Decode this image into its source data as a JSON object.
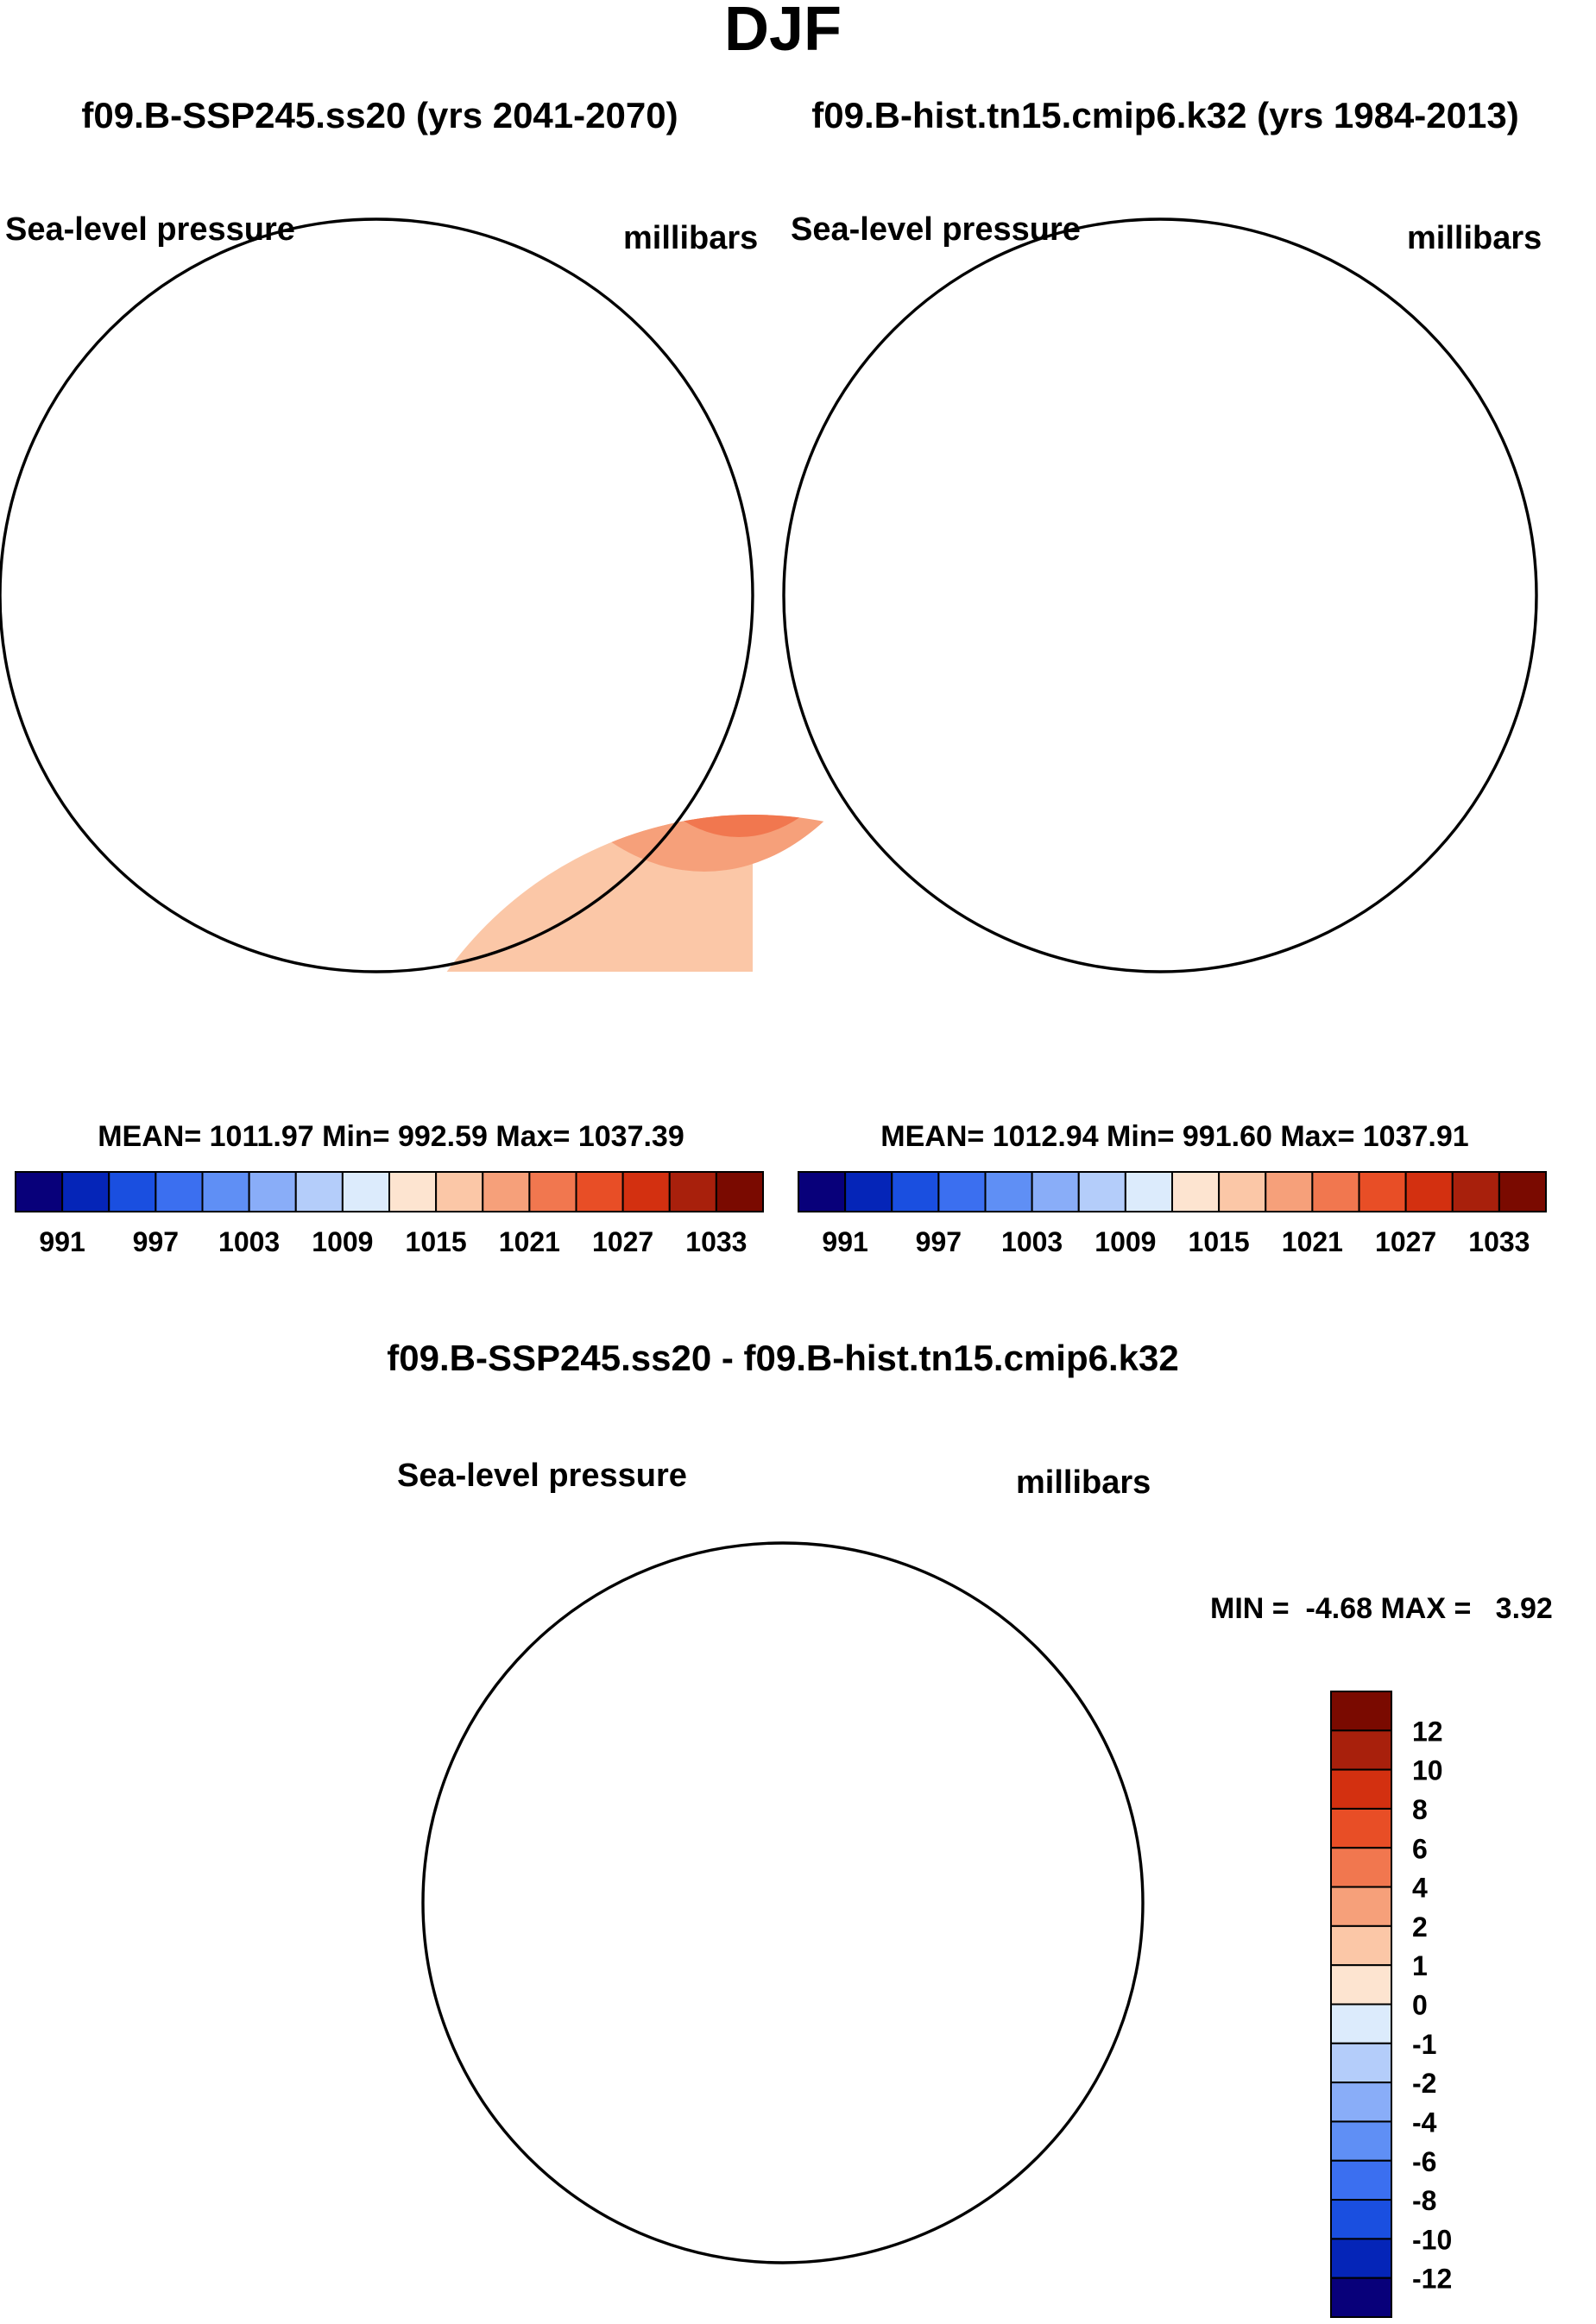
{
  "chart_data": [
    {
      "type": "heatmap",
      "projection": "north polar stereographic",
      "season_title": "DJF",
      "header": "f09.B-SSP245.ss20 (yrs 2041-2070)",
      "left_title": "Sea-level pressure",
      "right_title": "millibars",
      "stats_text": "MEAN= 1011.97  Min= 992.59  Max= 1037.39",
      "mean": 1011.97,
      "min": 992.59,
      "max": 1037.39,
      "levels": [
        991,
        994,
        997,
        1000,
        1003,
        1006,
        1009,
        1012,
        1015,
        1018,
        1021,
        1024,
        1027,
        1030,
        1033
      ],
      "colorbar_labels": [
        "991",
        "997",
        "1003",
        "1009",
        "1015",
        "1021",
        "1027",
        "1033"
      ],
      "colors": [
        "#08007a",
        "#0525b8",
        "#1a4fe0",
        "#3b6ff0",
        "#5f8ff5",
        "#89adf8",
        "#b4cdfa",
        "#dcebfc",
        "#fde4d0",
        "#fbc7a7",
        "#f6a07a",
        "#f1774f",
        "#e84e26",
        "#d33010",
        "#a8200c",
        "#7a0a00"
      ]
    },
    {
      "type": "heatmap",
      "projection": "north polar stereographic",
      "header": "f09.B-hist.tn15.cmip6.k32 (yrs 1984-2013)",
      "left_title": "Sea-level pressure",
      "right_title": "millibars",
      "stats_text": "MEAN= 1012.94  Min= 991.60  Max= 1037.91",
      "mean": 1012.94,
      "min": 991.6,
      "max": 1037.91,
      "levels": [
        991,
        994,
        997,
        1000,
        1003,
        1006,
        1009,
        1012,
        1015,
        1018,
        1021,
        1024,
        1027,
        1030,
        1033
      ],
      "colorbar_labels": [
        "991",
        "997",
        "1003",
        "1009",
        "1015",
        "1021",
        "1027",
        "1033"
      ]
    },
    {
      "type": "heatmap",
      "projection": "north polar stereographic",
      "header": "f09.B-SSP245.ss20 - f09.B-hist.tn15.cmip6.k32",
      "left_title": "Sea-level pressure",
      "right_title": "millibars",
      "stats_text": "MIN =  -4.68 MAX =   3.92",
      "min": -4.68,
      "max": 3.92,
      "levels": [
        -12,
        -10,
        -8,
        -6,
        -4,
        -2,
        -1,
        0,
        1,
        2,
        4,
        6,
        8,
        10,
        12
      ],
      "colorbar_labels": [
        "12",
        "10",
        "8",
        "6",
        "4",
        "2",
        "1",
        "0",
        "-1",
        "-2",
        "-4",
        "-6",
        "-8",
        "-10",
        "-12"
      ],
      "colors": [
        "#08007a",
        "#0525b8",
        "#1a4fe0",
        "#3b6ff0",
        "#5f8ff5",
        "#89adf8",
        "#b4cdfa",
        "#dcebfc",
        "#fde4d0",
        "#fbc7a7",
        "#f6a07a",
        "#f1774f",
        "#e84e26",
        "#d33010",
        "#a8200c",
        "#7a0a00"
      ]
    }
  ]
}
